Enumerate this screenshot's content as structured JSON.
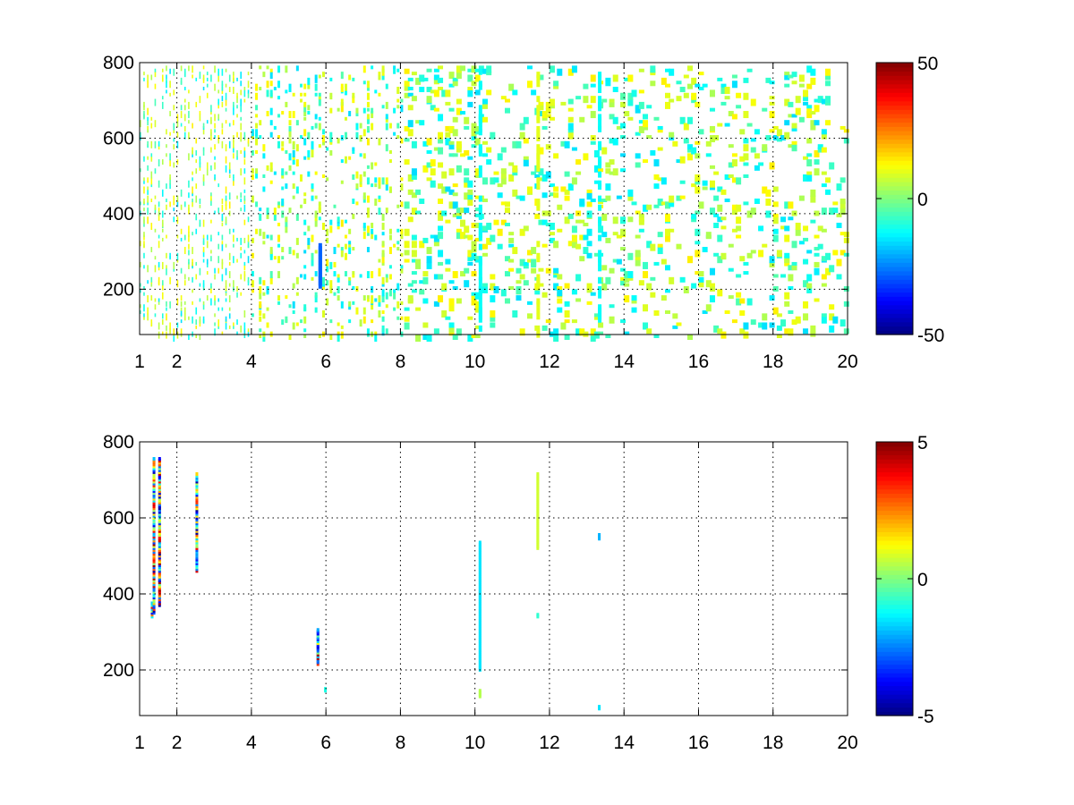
{
  "chart_data": [
    {
      "type": "heatmap",
      "xlim": [
        1,
        20
      ],
      "ylim": [
        80,
        800
      ],
      "x_ticks": [
        "1",
        "2",
        "4",
        "6",
        "8",
        "10",
        "12",
        "14",
        "16",
        "18",
        "20"
      ],
      "y_ticks": [
        "200",
        "400",
        "600",
        "800"
      ],
      "grid": true,
      "colormap": "jet",
      "colorbar": {
        "min": -50,
        "max": 50,
        "ticks": [
          "-50",
          "0",
          "50"
        ]
      },
      "pattern": "sparse cells, mostly values between -20 and 20, sparsity decreasing toward larger x; dense thin columns near x 1-4",
      "highlights": [
        {
          "x": 5.8,
          "y_from": 210,
          "y_to": 320,
          "value": -28
        },
        {
          "x": 10.1,
          "y_from": 80,
          "y_to": 800,
          "value": -12
        },
        {
          "x": 13.3,
          "y_from": 80,
          "y_to": 800,
          "value": -12
        },
        {
          "x": 11.65,
          "y_from": 80,
          "y_to": 800,
          "value": 10
        }
      ]
    },
    {
      "type": "heatmap",
      "xlim": [
        1,
        20
      ],
      "ylim": [
        80,
        800
      ],
      "x_ticks": [
        "1",
        "2",
        "4",
        "6",
        "8",
        "10",
        "12",
        "14",
        "16",
        "18",
        "20"
      ],
      "y_ticks": [
        "200",
        "400",
        "600",
        "800"
      ],
      "grid": true,
      "colormap": "jet",
      "colorbar": {
        "min": -5,
        "max": 5,
        "ticks": [
          "-5",
          "0",
          "5"
        ]
      },
      "streaks": [
        {
          "x": 1.3,
          "y_from": 340,
          "y_to": 380,
          "mixed": true
        },
        {
          "x": 1.35,
          "y_from": 350,
          "y_to": 760,
          "mixed": true
        },
        {
          "x": 1.5,
          "y_from": 370,
          "y_to": 760,
          "mixed": true
        },
        {
          "x": 2.5,
          "y_from": 460,
          "y_to": 720,
          "mixed": true
        },
        {
          "x": 5.75,
          "y_from": 215,
          "y_to": 310,
          "mixed": true
        },
        {
          "x": 5.95,
          "y_from": 145,
          "y_to": 152,
          "value": -1
        },
        {
          "x": 10.1,
          "y_from": 200,
          "y_to": 540,
          "value": -1.5
        },
        {
          "x": 10.1,
          "y_from": 130,
          "y_to": 150,
          "value": 0.5
        },
        {
          "x": 11.65,
          "y_from": 520,
          "y_to": 720,
          "value": 0.8
        },
        {
          "x": 11.65,
          "y_from": 340,
          "y_to": 350,
          "value": -0.8
        },
        {
          "x": 13.3,
          "y_from": 545,
          "y_to": 556,
          "value": -2
        },
        {
          "x": 13.3,
          "y_from": 98,
          "y_to": 104,
          "value": -1.5
        }
      ]
    }
  ]
}
